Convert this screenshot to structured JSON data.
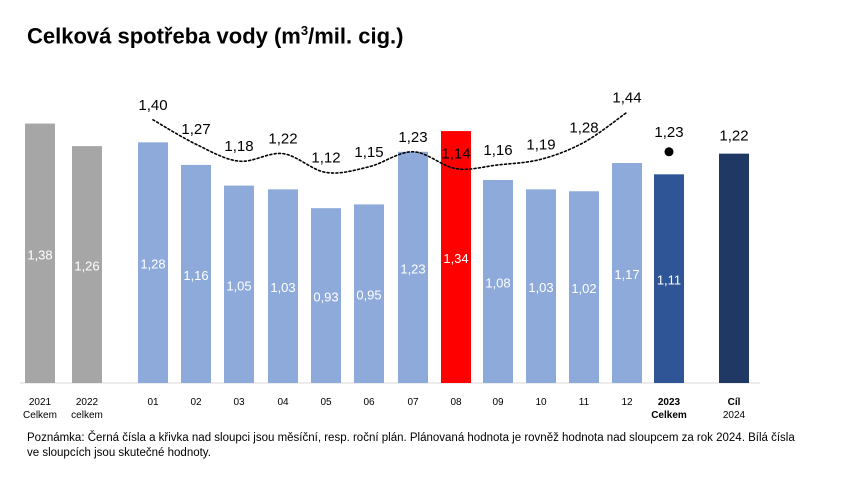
{
  "title": {
    "main": "Celková spotřeba vody (m",
    "sup": "3",
    "rest": "/mil. cig.)"
  },
  "note": "Poznámka: Černá čísla a křivka nad sloupci jsou měsíční, resp. roční plán. Plánovaná hodnota je rovněž hodnota nad sloupcem za rok 2024. Bílá čísla ve sloupcích jsou skutečné hodnoty.",
  "colors": {
    "year_gray": "#a6a6a6",
    "month_blue": "#8eaadb",
    "highlight_red": "#ff0000",
    "total_2023": "#2f5597",
    "target_2024": "#203864"
  },
  "chart_data": {
    "type": "bar",
    "title": "Celková spotřeba vody (m3/mil. cig.)",
    "categories": [
      {
        "line1": "2021",
        "line2": "Celkem",
        "bold": false
      },
      {
        "line1": "2022",
        "line2": "celkem",
        "bold": false
      },
      {
        "line1": "01",
        "line2": "",
        "bold": false
      },
      {
        "line1": "02",
        "line2": "",
        "bold": false
      },
      {
        "line1": "03",
        "line2": "",
        "bold": false
      },
      {
        "line1": "04",
        "line2": "",
        "bold": false
      },
      {
        "line1": "05",
        "line2": "",
        "bold": false
      },
      {
        "line1": "06",
        "line2": "",
        "bold": false
      },
      {
        "line1": "07",
        "line2": "",
        "bold": false
      },
      {
        "line1": "08",
        "line2": "",
        "bold": false
      },
      {
        "line1": "09",
        "line2": "",
        "bold": false
      },
      {
        "line1": "10",
        "line2": "",
        "bold": false
      },
      {
        "line1": "11",
        "line2": "",
        "bold": false
      },
      {
        "line1": "12",
        "line2": "",
        "bold": false
      },
      {
        "line1": "2023",
        "line2": "Celkem",
        "bold": true
      },
      {
        "line1": "Cíl",
        "line2": "2024",
        "bold": true,
        "line2_bold": false
      }
    ],
    "actual": [
      {
        "value": 1.38,
        "label": "1,38",
        "color": "year_gray",
        "show_label": true
      },
      {
        "value": 1.26,
        "label": "1,26",
        "color": "year_gray",
        "show_label": true
      },
      {
        "value": 1.28,
        "label": "1,28",
        "color": "month_blue",
        "show_label": true
      },
      {
        "value": 1.16,
        "label": "1,16",
        "color": "month_blue",
        "show_label": true
      },
      {
        "value": 1.05,
        "label": "1,05",
        "color": "month_blue",
        "show_label": true
      },
      {
        "value": 1.03,
        "label": "1,03",
        "color": "month_blue",
        "show_label": true
      },
      {
        "value": 0.93,
        "label": "0,93",
        "color": "month_blue",
        "show_label": true
      },
      {
        "value": 0.95,
        "label": "0,95",
        "color": "month_blue",
        "show_label": true
      },
      {
        "value": 1.23,
        "label": "1,23",
        "color": "month_blue",
        "show_label": true
      },
      {
        "value": 1.34,
        "label": "1,34",
        "color": "highlight_red",
        "show_label": true
      },
      {
        "value": 1.08,
        "label": "1,08",
        "color": "month_blue",
        "show_label": true
      },
      {
        "value": 1.03,
        "label": "1,03",
        "color": "month_blue",
        "show_label": true
      },
      {
        "value": 1.02,
        "label": "1,02",
        "color": "month_blue",
        "show_label": true
      },
      {
        "value": 1.17,
        "label": "1,17",
        "color": "month_blue",
        "show_label": true
      },
      {
        "value": 1.11,
        "label": "1,11",
        "color": "total_2023",
        "show_label": true
      },
      {
        "value": 1.22,
        "label": "1,22",
        "color": "target_2024",
        "show_label": false
      }
    ],
    "plan": {
      "values": [
        null,
        null,
        1.4,
        1.27,
        1.18,
        1.22,
        1.12,
        1.15,
        1.23,
        1.14,
        1.16,
        1.19,
        1.28,
        1.44,
        1.23,
        1.22
      ],
      "labels": [
        "",
        "",
        "1,40",
        "1,27",
        "1,18",
        "1,22",
        "1,12",
        "1,15",
        "1,23",
        "1,14",
        "1,16",
        "1,19",
        "1,28",
        "1,44",
        "1,23",
        "1,22"
      ],
      "curve_category_range": [
        2,
        13
      ],
      "marker_category": 14
    },
    "ylim": [
      0,
      1.6
    ],
    "xlabel": "",
    "ylabel": "",
    "grid": false,
    "legend": "none"
  }
}
